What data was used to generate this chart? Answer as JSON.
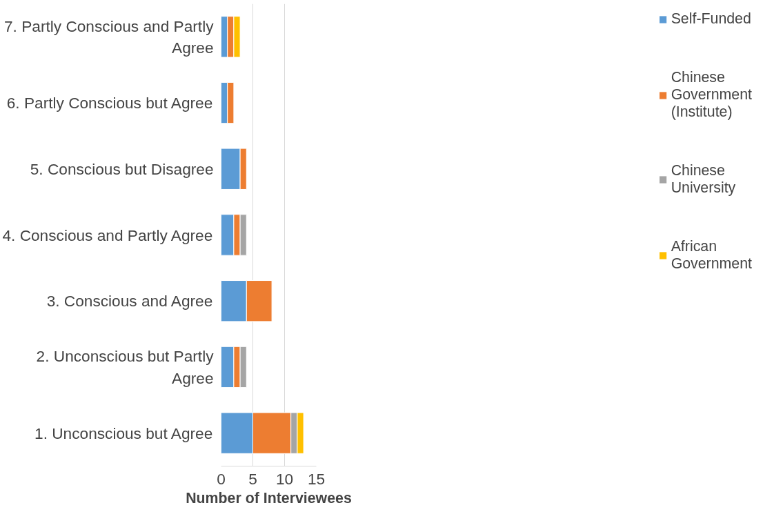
{
  "chart_data": {
    "type": "bar",
    "orientation": "horizontal",
    "stacked": true,
    "xlabel": "Number of Interviewees",
    "categories": [
      "7. Partly Conscious and Partly Agree",
      "6. Partly Conscious but Agree",
      "5. Conscious but Disagree",
      "4. Conscious and Partly Agree",
      "3. Conscious and Agree",
      "2. Unconscious but Partly Agree",
      "1. Unconscious but Agree"
    ],
    "series": [
      {
        "name": "Self-Funded",
        "color": "#5b9bd5",
        "values": [
          1,
          1,
          3,
          2,
          4,
          2,
          5
        ]
      },
      {
        "name": "Chinese Government (Institute)",
        "color": "#ed7d31",
        "values": [
          1,
          1,
          1,
          1,
          4,
          1,
          6
        ]
      },
      {
        "name": "Chinese University",
        "color": "#a5a5a5",
        "values": [
          0,
          0,
          0,
          1,
          0,
          1,
          1
        ]
      },
      {
        "name": "African Government",
        "color": "#ffc000",
        "values": [
          1,
          0,
          0,
          0,
          0,
          0,
          1
        ]
      }
    ],
    "xlim": [
      0,
      15
    ],
    "xticks": [
      0,
      5,
      10,
      15
    ],
    "grid": "x",
    "legend": "right"
  }
}
